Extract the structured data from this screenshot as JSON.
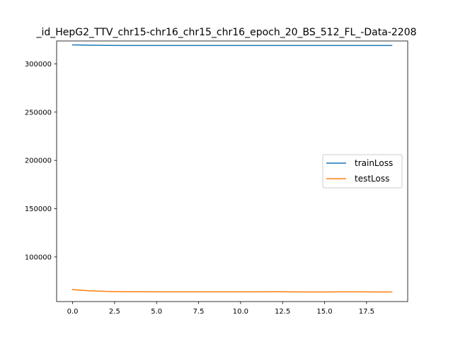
{
  "chart_data": {
    "type": "line",
    "title": "_id_HepG2_TTV_chr15-chr16_chr15_chr16_epoch_20_BS_512_FL_-Data-2208",
    "xlabel": "",
    "ylabel": "",
    "xlim": [
      -0.95,
      19.95
    ],
    "ylim": [
      53800,
      323700
    ],
    "xticks": [
      0.0,
      2.5,
      5.0,
      7.5,
      10.0,
      12.5,
      15.0,
      17.5
    ],
    "xtick_labels": [
      "0.0",
      "2.5",
      "5.0",
      "7.5",
      "10.0",
      "12.5",
      "15.0",
      "17.5"
    ],
    "yticks": [
      100000,
      150000,
      200000,
      250000,
      300000
    ],
    "ytick_labels": [
      "100000",
      "150000",
      "200000",
      "250000",
      "300000"
    ],
    "grid": false,
    "legend_position": "center-right",
    "x": [
      0,
      1,
      2,
      3,
      4,
      5,
      6,
      7,
      8,
      9,
      10,
      11,
      12,
      13,
      14,
      15,
      16,
      17,
      18,
      19
    ],
    "series": [
      {
        "name": "trainLoss",
        "color": "#1f77b4",
        "values": [
          319700,
          319300,
          319100,
          319050,
          319050,
          319050,
          319050,
          319050,
          319050,
          319050,
          319050,
          319050,
          319050,
          319050,
          319050,
          319050,
          319050,
          319050,
          319050,
          319050
        ]
      },
      {
        "name": "testLoss",
        "color": "#ff7f0e",
        "values": [
          66200,
          65000,
          64300,
          64000,
          64000,
          63900,
          63900,
          63900,
          63900,
          63900,
          63900,
          63900,
          64000,
          63900,
          63800,
          63800,
          63900,
          63900,
          63800,
          63800
        ]
      }
    ]
  }
}
